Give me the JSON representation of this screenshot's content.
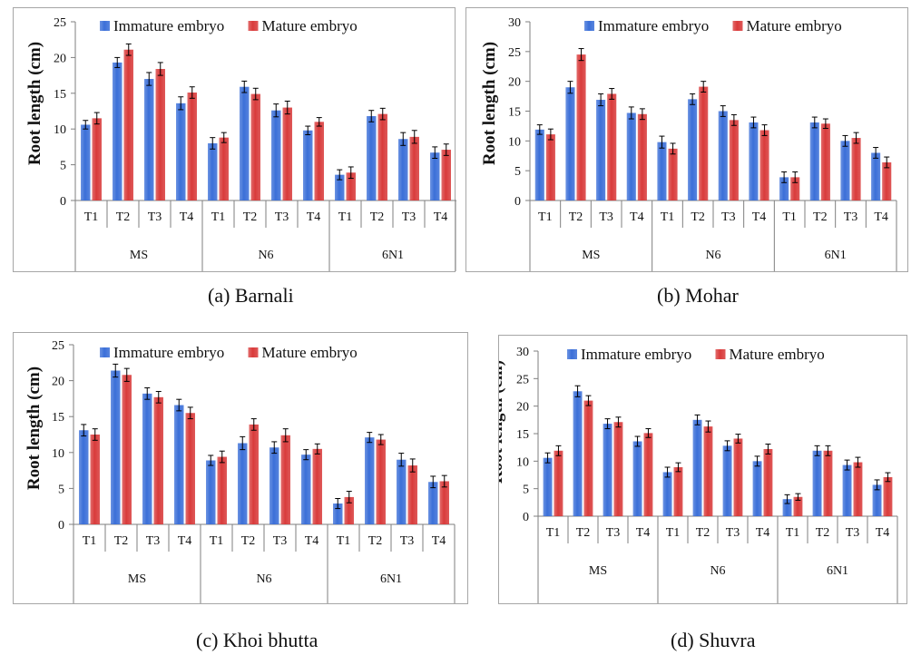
{
  "colors": {
    "immature": "#3b6fd8",
    "mature": "#d93b3b",
    "axis": "#7f7f7f",
    "text": "#111111"
  },
  "chart_data": [
    {
      "type": "bar",
      "caption": "(a) Barnali",
      "ylabel": "Root length (cm)",
      "ylim": [
        0,
        25
      ],
      "yticks": [
        0,
        5,
        10,
        15,
        20,
        25
      ],
      "categories": [
        "T1",
        "T2",
        "T3",
        "T4",
        "T1",
        "T2",
        "T3",
        "T4",
        "T1",
        "T2",
        "T3",
        "T4"
      ],
      "groups": [
        {
          "label": "MS",
          "span": 4
        },
        {
          "label": "N6",
          "span": 4
        },
        {
          "label": "6N1",
          "span": 4
        }
      ],
      "legend_position": "top",
      "series": [
        {
          "name": "Immature embryo",
          "values": [
            10.6,
            19.3,
            17.0,
            13.6,
            8.0,
            15.9,
            12.6,
            9.8,
            3.6,
            11.8,
            8.6,
            6.7
          ],
          "errors": [
            0.6,
            0.7,
            0.9,
            0.9,
            0.8,
            0.8,
            0.9,
            0.6,
            0.7,
            0.8,
            0.9,
            0.8
          ]
        },
        {
          "name": "Mature embryo",
          "values": [
            11.5,
            21.1,
            18.4,
            15.1,
            8.8,
            14.9,
            13.0,
            11.0,
            3.9,
            12.1,
            8.9,
            7.1
          ],
          "errors": [
            0.8,
            0.8,
            0.9,
            0.8,
            0.7,
            0.8,
            0.9,
            0.6,
            0.8,
            0.8,
            0.9,
            0.8
          ]
        }
      ]
    },
    {
      "type": "bar",
      "caption": "(b) Mohar",
      "ylabel": "Root length (cm)",
      "ylim": [
        0,
        30
      ],
      "yticks": [
        0,
        5,
        10,
        15,
        20,
        25,
        30
      ],
      "categories": [
        "T1",
        "T2",
        "T3",
        "T4",
        "T1",
        "T2",
        "T3",
        "T4",
        "T1",
        "T2",
        "T3",
        "T4"
      ],
      "groups": [
        {
          "label": "MS",
          "span": 4
        },
        {
          "label": "N6",
          "span": 4
        },
        {
          "label": "6N1",
          "span": 4
        }
      ],
      "legend_position": "top",
      "series": [
        {
          "name": "Immature embryo",
          "values": [
            11.9,
            19.0,
            16.9,
            14.7,
            9.8,
            17.0,
            15.0,
            13.1,
            3.9,
            13.1,
            10.0,
            8.0
          ],
          "errors": [
            0.8,
            1.0,
            1.0,
            1.0,
            1.0,
            0.9,
            0.9,
            0.9,
            0.9,
            0.9,
            0.9,
            0.9
          ]
        },
        {
          "name": "Mature embryo",
          "values": [
            11.1,
            24.5,
            17.9,
            14.5,
            8.7,
            19.1,
            13.5,
            11.8,
            3.9,
            12.9,
            10.5,
            6.4
          ],
          "errors": [
            0.9,
            1.0,
            0.9,
            0.9,
            0.9,
            0.9,
            0.9,
            0.9,
            0.9,
            0.8,
            0.9,
            0.9
          ]
        }
      ]
    },
    {
      "type": "bar",
      "caption": "(c) Khoi bhutta",
      "ylabel": "Root length (cm)",
      "ylim": [
        0,
        25
      ],
      "yticks": [
        0,
        5,
        10,
        15,
        20,
        25
      ],
      "categories": [
        "T1",
        "T2",
        "T3",
        "T4",
        "T1",
        "T2",
        "T3",
        "T4",
        "T1",
        "T2",
        "T3",
        "T4"
      ],
      "groups": [
        {
          "label": "MS",
          "span": 4
        },
        {
          "label": "N6",
          "span": 4
        },
        {
          "label": "6N1",
          "span": 4
        }
      ],
      "legend_position": "top",
      "series": [
        {
          "name": "Immature embryo",
          "values": [
            13.1,
            21.4,
            18.2,
            16.6,
            8.9,
            11.3,
            10.7,
            9.7,
            2.9,
            12.1,
            9.0,
            5.9
          ],
          "errors": [
            0.8,
            0.9,
            0.8,
            0.8,
            0.7,
            0.9,
            0.8,
            0.7,
            0.7,
            0.7,
            0.9,
            0.8
          ]
        },
        {
          "name": "Mature embryo",
          "values": [
            12.5,
            20.8,
            17.7,
            15.5,
            9.4,
            13.9,
            12.4,
            10.5,
            3.8,
            11.8,
            8.2,
            6.0
          ],
          "errors": [
            0.8,
            0.9,
            0.8,
            0.8,
            0.8,
            0.8,
            0.9,
            0.7,
            0.8,
            0.7,
            0.9,
            0.8
          ]
        }
      ]
    },
    {
      "type": "bar",
      "caption": "(d) Shuvra",
      "ylabel": "Root length (cm)",
      "ylim": [
        0,
        30
      ],
      "yticks": [
        0,
        5,
        10,
        15,
        20,
        25,
        30
      ],
      "categories": [
        "T1",
        "T2",
        "T3",
        "T4",
        "T1",
        "T2",
        "T3",
        "T4",
        "T1",
        "T2",
        "T3",
        "T4"
      ],
      "groups": [
        {
          "label": "MS",
          "span": 4
        },
        {
          "label": "N6",
          "span": 4
        },
        {
          "label": "6N1",
          "span": 4
        }
      ],
      "legend_position": "top",
      "series": [
        {
          "name": "Immature embryo",
          "values": [
            10.6,
            22.7,
            16.8,
            13.6,
            8.0,
            17.5,
            12.8,
            10.0,
            3.1,
            11.9,
            9.3,
            5.7
          ],
          "errors": [
            0.9,
            1.0,
            0.9,
            0.9,
            0.9,
            0.9,
            0.9,
            0.9,
            0.8,
            0.9,
            0.9,
            0.9
          ]
        },
        {
          "name": "Mature embryo",
          "values": [
            11.9,
            21.0,
            17.1,
            15.1,
            8.9,
            16.3,
            14.1,
            12.2,
            3.5,
            11.9,
            9.8,
            7.1
          ],
          "errors": [
            0.9,
            0.9,
            0.9,
            0.8,
            0.8,
            1.0,
            0.8,
            0.9,
            0.6,
            0.9,
            0.9,
            0.8
          ]
        }
      ]
    }
  ]
}
